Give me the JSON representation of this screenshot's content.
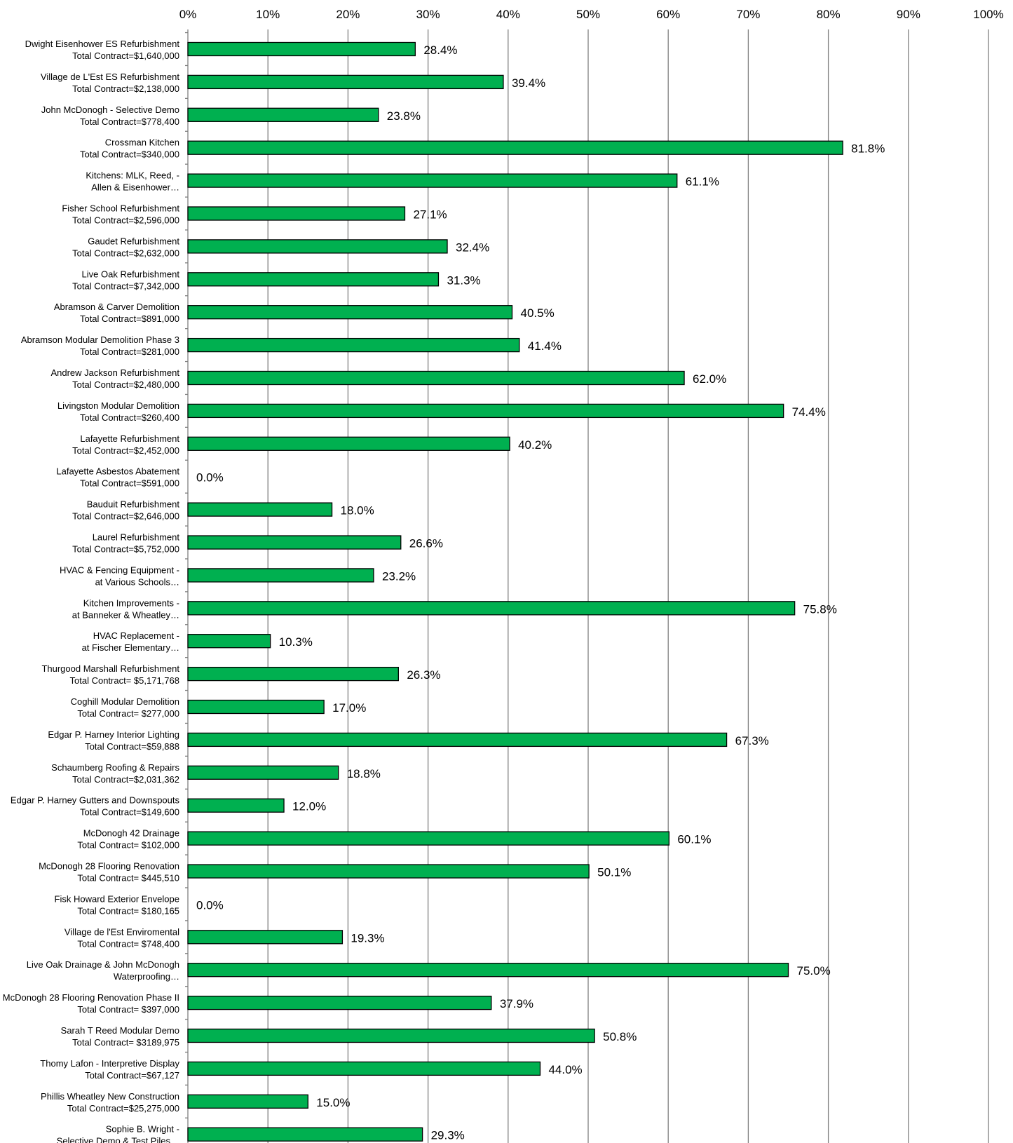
{
  "chart_data": {
    "type": "bar",
    "orientation": "horizontal",
    "title": "",
    "xlabel": "",
    "ylabel": "",
    "xlim": [
      0,
      100
    ],
    "x_ticks": [
      "0%",
      "10%",
      "20%",
      "30%",
      "40%",
      "50%",
      "60%",
      "70%",
      "80%",
      "90%",
      "100%"
    ],
    "x_axis_position": "top",
    "grid": true,
    "legend": "none",
    "bar_color": "#00b050",
    "categories": [
      [
        "Dwight Eisenhower ES Refurbishment",
        "Total Contract=$1,640,000"
      ],
      [
        "Village de L'Est ES Refurbishment",
        "Total Contract=$2,138,000"
      ],
      [
        "John McDonogh - Selective Demo",
        "Total Contract=$778,400"
      ],
      [
        "Crossman Kitchen",
        "Total Contract=$340,000"
      ],
      [
        "Kitchens:  MLK, Reed, -",
        "Allen & Eisenhower…"
      ],
      [
        "Fisher School Refurbishment",
        "Total Contract=$2,596,000"
      ],
      [
        "Gaudet Refurbishment",
        "Total Contract=$2,632,000"
      ],
      [
        "Live Oak Refurbishment",
        "Total Contract=$7,342,000"
      ],
      [
        "Abramson & Carver Demolition",
        "Total Contract=$891,000"
      ],
      [
        "Abramson Modular Demolition Phase 3",
        "Total Contract=$281,000"
      ],
      [
        "Andrew Jackson Refurbishment",
        "Total Contract=$2,480,000"
      ],
      [
        "Livingston Modular Demolition",
        "Total Contract=$260,400"
      ],
      [
        "Lafayette Refurbishment",
        "Total Contract=$2,452,000"
      ],
      [
        "Lafayette Asbestos Abatement",
        "Total Contract=$591,000"
      ],
      [
        "Bauduit Refurbishment",
        "Total Contract=$2,646,000"
      ],
      [
        "Laurel Refurbishment",
        "Total Contract=$5,752,000"
      ],
      [
        "HVAC & Fencing Equipment  -",
        "at Various Schools…"
      ],
      [
        "Kitchen Improvements  -",
        "at Banneker & Wheatley…"
      ],
      [
        "HVAC Replacement  -",
        "at Fischer Elementary…"
      ],
      [
        "Thurgood Marshall Refurbishment",
        "Total Contract= $5,171,768"
      ],
      [
        "Coghill Modular Demolition",
        "Total Contract= $277,000"
      ],
      [
        "Edgar P. Harney Interior Lighting",
        "Total Contract=$59,888"
      ],
      [
        "Schaumberg Roofing & Repairs",
        "Total Contract=$2,031,362"
      ],
      [
        "Edgar P. Harney Gutters and Downspouts",
        "Total Contract=$149,600"
      ],
      [
        "McDonogh 42 Drainage",
        "Total Contract= $102,000"
      ],
      [
        "McDonogh 28 Flooring Renovation",
        "Total Contract= $445,510"
      ],
      [
        "Fisk Howard Exterior Envelope",
        "Total Contract= $180,165"
      ],
      [
        "Village de l'Est Enviromental",
        "Total Contract= $748,400"
      ],
      [
        "Live Oak Drainage & John McDonogh",
        "Waterproofing…"
      ],
      [
        "McDonogh 28 Flooring Renovation Phase II",
        "Total Contract= $397,000"
      ],
      [
        "Sarah T Reed Modular Demo",
        "Total Contract= $3189,975"
      ],
      [
        "Thomy Lafon - Interpretive Display",
        "Total Contract=$67,127"
      ],
      [
        "Phillis Wheatley New Construction",
        "Total Contract=$25,275,000"
      ],
      [
        "Sophie B. Wright -",
        "Selective Demo & Test Piles…"
      ]
    ],
    "values": [
      28.4,
      39.4,
      23.8,
      81.8,
      61.1,
      27.1,
      32.4,
      31.3,
      40.5,
      41.4,
      62.0,
      74.4,
      40.2,
      0.0,
      18.0,
      26.6,
      23.2,
      75.8,
      10.3,
      26.3,
      17.0,
      67.3,
      18.8,
      12.0,
      60.1,
      50.1,
      0.0,
      19.3,
      75.0,
      37.9,
      50.8,
      44.0,
      15.0,
      29.3
    ],
    "value_labels": [
      "28.4%",
      "39.4%",
      "23.8%",
      "81.8%",
      "61.1%",
      "27.1%",
      "32.4%",
      "31.3%",
      "40.5%",
      "41.4%",
      "62.0%",
      "74.4%",
      "40.2%",
      "0.0%",
      "18.0%",
      "26.6%",
      "23.2%",
      "75.8%",
      "10.3%",
      "26.3%",
      "17.0%",
      "67.3%",
      "18.8%",
      "12.0%",
      "60.1%",
      "50.1%",
      "0.0%",
      "19.3%",
      "75.0%",
      "37.9%",
      "50.8%",
      "44.0%",
      "15.0%",
      "29.3%"
    ]
  }
}
